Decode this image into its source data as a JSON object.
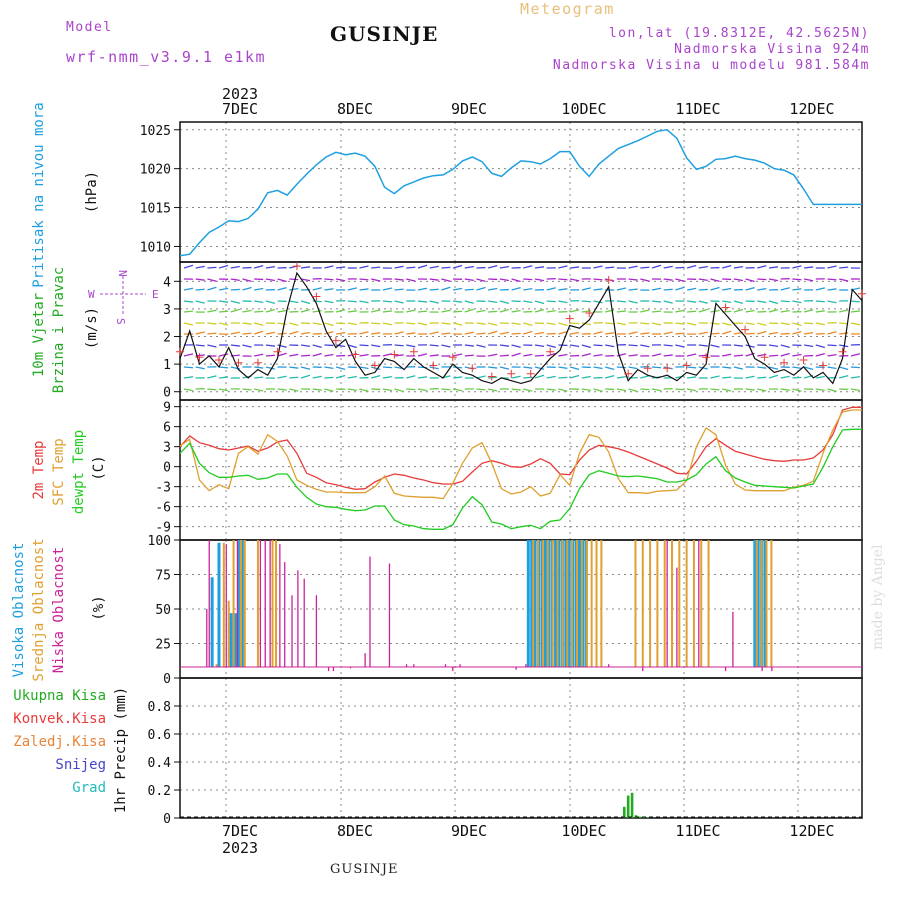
{
  "header": {
    "model_label": "Model",
    "model_name": "wrf-nmm_v3.9.1 e1km",
    "product": "Meteogram",
    "location": "GUSINJE",
    "coords": "lon,lat (19.8312E, 42.5625N)",
    "elevation": "Nadmorska Visina 924m",
    "model_elevation": "Nadmorska Visina u modelu 981.584m"
  },
  "footer": {
    "location": "GUSINJE",
    "credit": "made by Angel"
  },
  "colors": {
    "pressure": "#1e9fe0",
    "temp2m": "#e83a3a",
    "sfc": "#e0a030",
    "dew": "#22cc22",
    "cloud_high": "#1e9fe0",
    "cloud_mid": "#e0a030",
    "cloud_low": "#cc2299",
    "precip_total": "#22aa22",
    "precip_conv": "#e83a3a",
    "precip_frozen": "#e8843a",
    "snow": "#4444cc",
    "grad": "#22bbbb",
    "wind_label": "#22aa22",
    "wind_dir": "#aa44cc",
    "header": "#aa44cc",
    "meteogram": "#e8c07a"
  },
  "chart_data": [
    {
      "type": "line",
      "name": "pressure",
      "ylabel": "Pritisak na nivou mora",
      "unit": "(hPa)",
      "ylim": [
        1008,
        1026
      ],
      "yticks": [
        1010,
        1015,
        1020,
        1025
      ],
      "xlim": [
        0,
        140
      ],
      "x_top_labels": [
        "7DEC",
        "8DEC",
        "9DEC",
        "10DEC",
        "11DEC",
        "12DEC"
      ],
      "x_top_year": "2023",
      "x": [
        0,
        2,
        4,
        6,
        8,
        10,
        12,
        14,
        16,
        18,
        20,
        22,
        24,
        26,
        28,
        30,
        32,
        34,
        36,
        38,
        40,
        42,
        44,
        46,
        48,
        50,
        52,
        54,
        56,
        58,
        60,
        62,
        64,
        66,
        68,
        70,
        72,
        74,
        76,
        78,
        80,
        82,
        84,
        86,
        88,
        90,
        92,
        94,
        96,
        98,
        100,
        102,
        104,
        106,
        108,
        110,
        112,
        114,
        116,
        118,
        120,
        122,
        124,
        126,
        128,
        130,
        132,
        134,
        136,
        138,
        140
      ],
      "y": [
        1008.8,
        1009.0,
        1010.5,
        1011.8,
        1012.5,
        1013.3,
        1013.2,
        1013.6,
        1014.8,
        1016.9,
        1017.2,
        1016.6,
        1018.0,
        1019.3,
        1020.5,
        1021.5,
        1022.1,
        1021.8,
        1022.0,
        1021.6,
        1020.3,
        1017.6,
        1016.8,
        1017.8,
        1018.3,
        1018.8,
        1019.1,
        1019.2,
        1019.9,
        1021.0,
        1021.5,
        1020.9,
        1019.4,
        1019.0,
        1020.1,
        1021.0,
        1020.9,
        1020.6,
        1021.3,
        1022.2,
        1022.2,
        1020.3,
        1019.0,
        1020.6,
        1021.6,
        1022.6,
        1023.1,
        1023.6,
        1024.2,
        1024.8,
        1025.0,
        1023.9,
        1021.4,
        1019.9,
        1020.3,
        1021.2,
        1021.3,
        1021.6,
        1021.3,
        1021.1,
        1020.7,
        1020.0,
        1019.8,
        1019.2,
        1017.4,
        1015.4,
        1015.4,
        1015.4,
        1015.4,
        1015.4,
        1015.4
      ]
    },
    {
      "type": "line",
      "name": "wind",
      "ylabel": "10m Vjetar",
      "ylabel2": "Brzina i Pravac",
      "unit": "(m/s)",
      "ylim": [
        -0.3,
        4.7
      ],
      "yticks": [
        0,
        1,
        2,
        3,
        4
      ],
      "compass": {
        "n": "N",
        "s": "S",
        "e": "E",
        "w": "W"
      },
      "x": [
        0,
        2,
        4,
        6,
        8,
        10,
        12,
        14,
        16,
        18,
        20,
        22,
        24,
        26,
        28,
        30,
        32,
        34,
        36,
        38,
        40,
        42,
        44,
        46,
        48,
        50,
        52,
        54,
        56,
        58,
        60,
        62,
        64,
        66,
        68,
        70,
        72,
        74,
        76,
        78,
        80,
        82,
        84,
        86,
        88,
        90,
        92,
        94,
        96,
        98,
        100,
        102,
        104,
        106,
        108,
        110,
        112,
        114,
        116,
        118,
        120,
        122,
        124,
        126,
        128,
        130,
        132,
        134,
        136,
        138,
        140
      ],
      "y": [
        1.2,
        2.2,
        1.0,
        1.3,
        0.9,
        1.6,
        0.8,
        0.5,
        0.8,
        0.6,
        1.2,
        3.0,
        4.3,
        3.8,
        3.2,
        2.2,
        1.6,
        1.9,
        1.1,
        0.6,
        0.7,
        1.2,
        1.1,
        0.8,
        1.2,
        0.9,
        0.7,
        0.5,
        1.0,
        0.7,
        0.6,
        0.4,
        0.3,
        0.5,
        0.4,
        0.3,
        0.4,
        0.8,
        1.2,
        1.5,
        2.4,
        2.3,
        2.6,
        3.2,
        3.8,
        1.4,
        0.4,
        0.8,
        0.6,
        0.5,
        0.6,
        0.4,
        0.7,
        0.6,
        1.0,
        3.2,
        2.8,
        2.4,
        2.0,
        1.2,
        1.0,
        0.7,
        0.8,
        0.6,
        0.9,
        0.5,
        0.7,
        0.3,
        1.2,
        3.7,
        3.3
      ]
    },
    {
      "type": "line",
      "name": "temperature",
      "series_labels": [
        "2m Temp",
        "SFC Temp",
        "dewpt Temp"
      ],
      "unit": "(C)",
      "ylim": [
        -11,
        10
      ],
      "yticks": [
        9,
        6,
        3,
        0,
        -3,
        -6,
        -9
      ],
      "x": [
        0,
        2,
        4,
        6,
        8,
        10,
        12,
        14,
        16,
        18,
        20,
        22,
        24,
        26,
        28,
        30,
        32,
        34,
        36,
        38,
        40,
        42,
        44,
        46,
        48,
        50,
        52,
        54,
        56,
        58,
        60,
        62,
        64,
        66,
        68,
        70,
        72,
        74,
        76,
        78,
        80,
        82,
        84,
        86,
        88,
        90,
        92,
        94,
        96,
        98,
        100,
        102,
        104,
        106,
        108,
        110,
        112,
        114,
        116,
        118,
        120,
        122,
        124,
        126,
        128,
        130,
        132,
        134,
        136,
        138,
        140
      ],
      "series": [
        {
          "key": "temp2m",
          "values": [
            3.0,
            4.6,
            3.6,
            3.2,
            2.7,
            2.5,
            2.8,
            3.1,
            2.3,
            2.8,
            3.7,
            4.0,
            2.0,
            -1.0,
            -1.6,
            -2.4,
            -2.7,
            -3.1,
            -3.4,
            -3.3,
            -2.3,
            -1.6,
            -1.1,
            -1.3,
            -1.7,
            -2.0,
            -2.4,
            -2.6,
            -2.6,
            -2.2,
            -0.8,
            0.5,
            0.9,
            0.5,
            0.0,
            -0.1,
            0.4,
            1.2,
            0.5,
            -1.1,
            -1.2,
            1.0,
            2.5,
            3.2,
            3.0,
            2.7,
            2.2,
            1.6,
            1.0,
            0.4,
            -0.2,
            -1.0,
            -1.1,
            0.8,
            3.0,
            4.2,
            3.2,
            2.3,
            1.9,
            1.5,
            1.1,
            0.9,
            0.8,
            1.0,
            1.0,
            1.3,
            2.5,
            4.8,
            8.5,
            8.9,
            8.9
          ]
        },
        {
          "key": "sfc",
          "values": [
            3.1,
            4.1,
            -2.0,
            -3.6,
            -2.7,
            -3.3,
            2.0,
            3.0,
            1.9,
            4.8,
            3.8,
            1.6,
            -2.0,
            -2.8,
            -3.4,
            -3.8,
            -3.8,
            -3.9,
            -3.9,
            -3.9,
            -3.0,
            -1.4,
            -4.0,
            -4.4,
            -4.5,
            -4.6,
            -4.6,
            -4.8,
            -2.5,
            0.5,
            2.8,
            3.6,
            0.5,
            -3.3,
            -4.1,
            -3.8,
            -3.0,
            -4.4,
            -4.0,
            -1.2,
            -2.8,
            2.0,
            4.8,
            4.4,
            2.2,
            -1.8,
            -3.9,
            -3.9,
            -4.0,
            -3.7,
            -3.6,
            -3.5,
            -2.1,
            3.0,
            5.8,
            4.8,
            0.2,
            -2.6,
            -3.5,
            -3.6,
            -3.6,
            -3.6,
            -3.6,
            -3.1,
            -2.8,
            -2.2,
            2.0,
            5.5,
            8.2,
            8.5,
            8.5
          ]
        },
        {
          "key": "dew",
          "values": [
            2.0,
            3.5,
            0.5,
            -0.9,
            -1.6,
            -1.6,
            -1.4,
            -1.3,
            -1.9,
            -1.7,
            -1.1,
            -1.1,
            -3.1,
            -4.6,
            -5.6,
            -6.0,
            -6.1,
            -6.4,
            -6.6,
            -6.5,
            -5.9,
            -5.9,
            -8.0,
            -8.7,
            -8.9,
            -9.3,
            -9.4,
            -9.4,
            -8.7,
            -6.2,
            -4.5,
            -5.7,
            -8.3,
            -8.6,
            -9.3,
            -9.0,
            -8.8,
            -9.3,
            -8.2,
            -8.0,
            -6.3,
            -3.3,
            -1.2,
            -0.6,
            -1.0,
            -1.4,
            -1.5,
            -1.4,
            -1.6,
            -1.8,
            -2.3,
            -2.3,
            -2.0,
            -1.2,
            0.4,
            1.5,
            -0.6,
            -1.7,
            -2.3,
            -2.8,
            -2.9,
            -3.0,
            -3.1,
            -3.2,
            -2.9,
            -2.6,
            -0.1,
            3.0,
            5.5,
            5.6,
            5.6
          ]
        }
      ]
    },
    {
      "type": "bar",
      "name": "clouds",
      "series_labels": [
        "Visoka Oblacnost",
        "Srednja Oblacnost",
        "Niska Oblacnost"
      ],
      "unit": "(%)",
      "ylim": [
        0,
        100
      ],
      "yticks": [
        0,
        25,
        50,
        75,
        100
      ],
      "series": [
        {
          "key": "high",
          "x": [
            6.6,
            8.0,
            10.5,
            11.5,
            12.0,
            12.8,
            14.0,
            71.5,
            72.2,
            72.9,
            73.6,
            74.3,
            75.0,
            75.7,
            76.4,
            77.1,
            77.8,
            78.5,
            79.2,
            79.9,
            80.6,
            81.3,
            82.0,
            82.7,
            83.4,
            118.0,
            118.7,
            119.4,
            120.1
          ],
          "values": [
            73,
            98,
            47,
            47,
            100,
            100,
            5,
            100,
            100,
            100,
            100,
            100,
            100,
            100,
            100,
            100,
            100,
            100,
            100,
            100,
            100,
            100,
            100,
            100,
            100,
            100,
            100,
            100,
            100
          ]
        },
        {
          "key": "mid",
          "x": [
            7.5,
            9.0,
            10.0,
            11.0,
            12.5,
            13.3,
            16.0,
            19.0,
            19.7,
            72.5,
            73.5,
            74.5,
            75.5,
            76.5,
            77.5,
            78.5,
            79.5,
            80.5,
            81.5,
            82.5,
            83.5,
            84.5,
            85.5,
            86.5,
            93.5,
            95.0,
            96.5,
            98.0,
            99.5,
            101.0,
            102.5,
            104.0,
            105.5,
            107.0,
            108.5,
            118.4,
            119.4,
            120.4,
            121.4
          ],
          "values": [
            10,
            98,
            56,
            100,
            100,
            100,
            100,
            100,
            100,
            100,
            100,
            100,
            100,
            100,
            100,
            100,
            100,
            100,
            100,
            100,
            100,
            100,
            100,
            100,
            100,
            100,
            100,
            100,
            100,
            100,
            100,
            100,
            100,
            100,
            100,
            100,
            100,
            100,
            100
          ]
        },
        {
          "key": "low",
          "x": [
            5.5,
            6.0,
            9.5,
            11.8,
            16.5,
            17.5,
            18.5,
            20.5,
            21.5,
            23.0,
            24.2,
            25.5,
            28.0,
            30.5,
            31.5,
            35.0,
            38.0,
            39.0,
            43.0,
            45.0,
            46.5,
            48.0,
            50.0,
            52.0,
            54.5,
            56.0,
            57.5,
            59.5,
            69.0,
            71.0,
            88.0,
            95.0,
            100.0,
            102.0,
            106.5,
            112.0,
            113.5,
            119.5,
            121.5
          ],
          "values": [
            50,
            100,
            97,
            100,
            100,
            100,
            100,
            97,
            84,
            60,
            78,
            72,
            60,
            5,
            5,
            7,
            18,
            88,
            83,
            8,
            10,
            10,
            8,
            8,
            10,
            5,
            10,
            8,
            6,
            10,
            10,
            5,
            100,
            80,
            100,
            5,
            48,
            5,
            5
          ]
        }
      ]
    },
    {
      "type": "bar",
      "name": "precip",
      "ylabel": "1hr Precip",
      "unit": "(mm)",
      "series_labels": [
        "Ukupna Kisa",
        "Konvek.Kisa",
        "Zaledj.Kisa",
        "Snijeg",
        "Grad"
      ],
      "ylim": [
        0,
        1
      ],
      "yticks": [
        0,
        0.2,
        0.4,
        0.6,
        0.8
      ],
      "x_bottom_labels": [
        "7DEC",
        "8DEC",
        "9DEC",
        "10DEC",
        "11DEC",
        "12DEC"
      ],
      "x_bottom_year": "2023",
      "x": [
        91.2,
        92.0,
        92.8,
        93.6,
        94.4,
        95.2,
        96.0
      ],
      "values": [
        0.08,
        0.16,
        0.18,
        0.02,
        0.01,
        0.01,
        0.005
      ]
    }
  ]
}
